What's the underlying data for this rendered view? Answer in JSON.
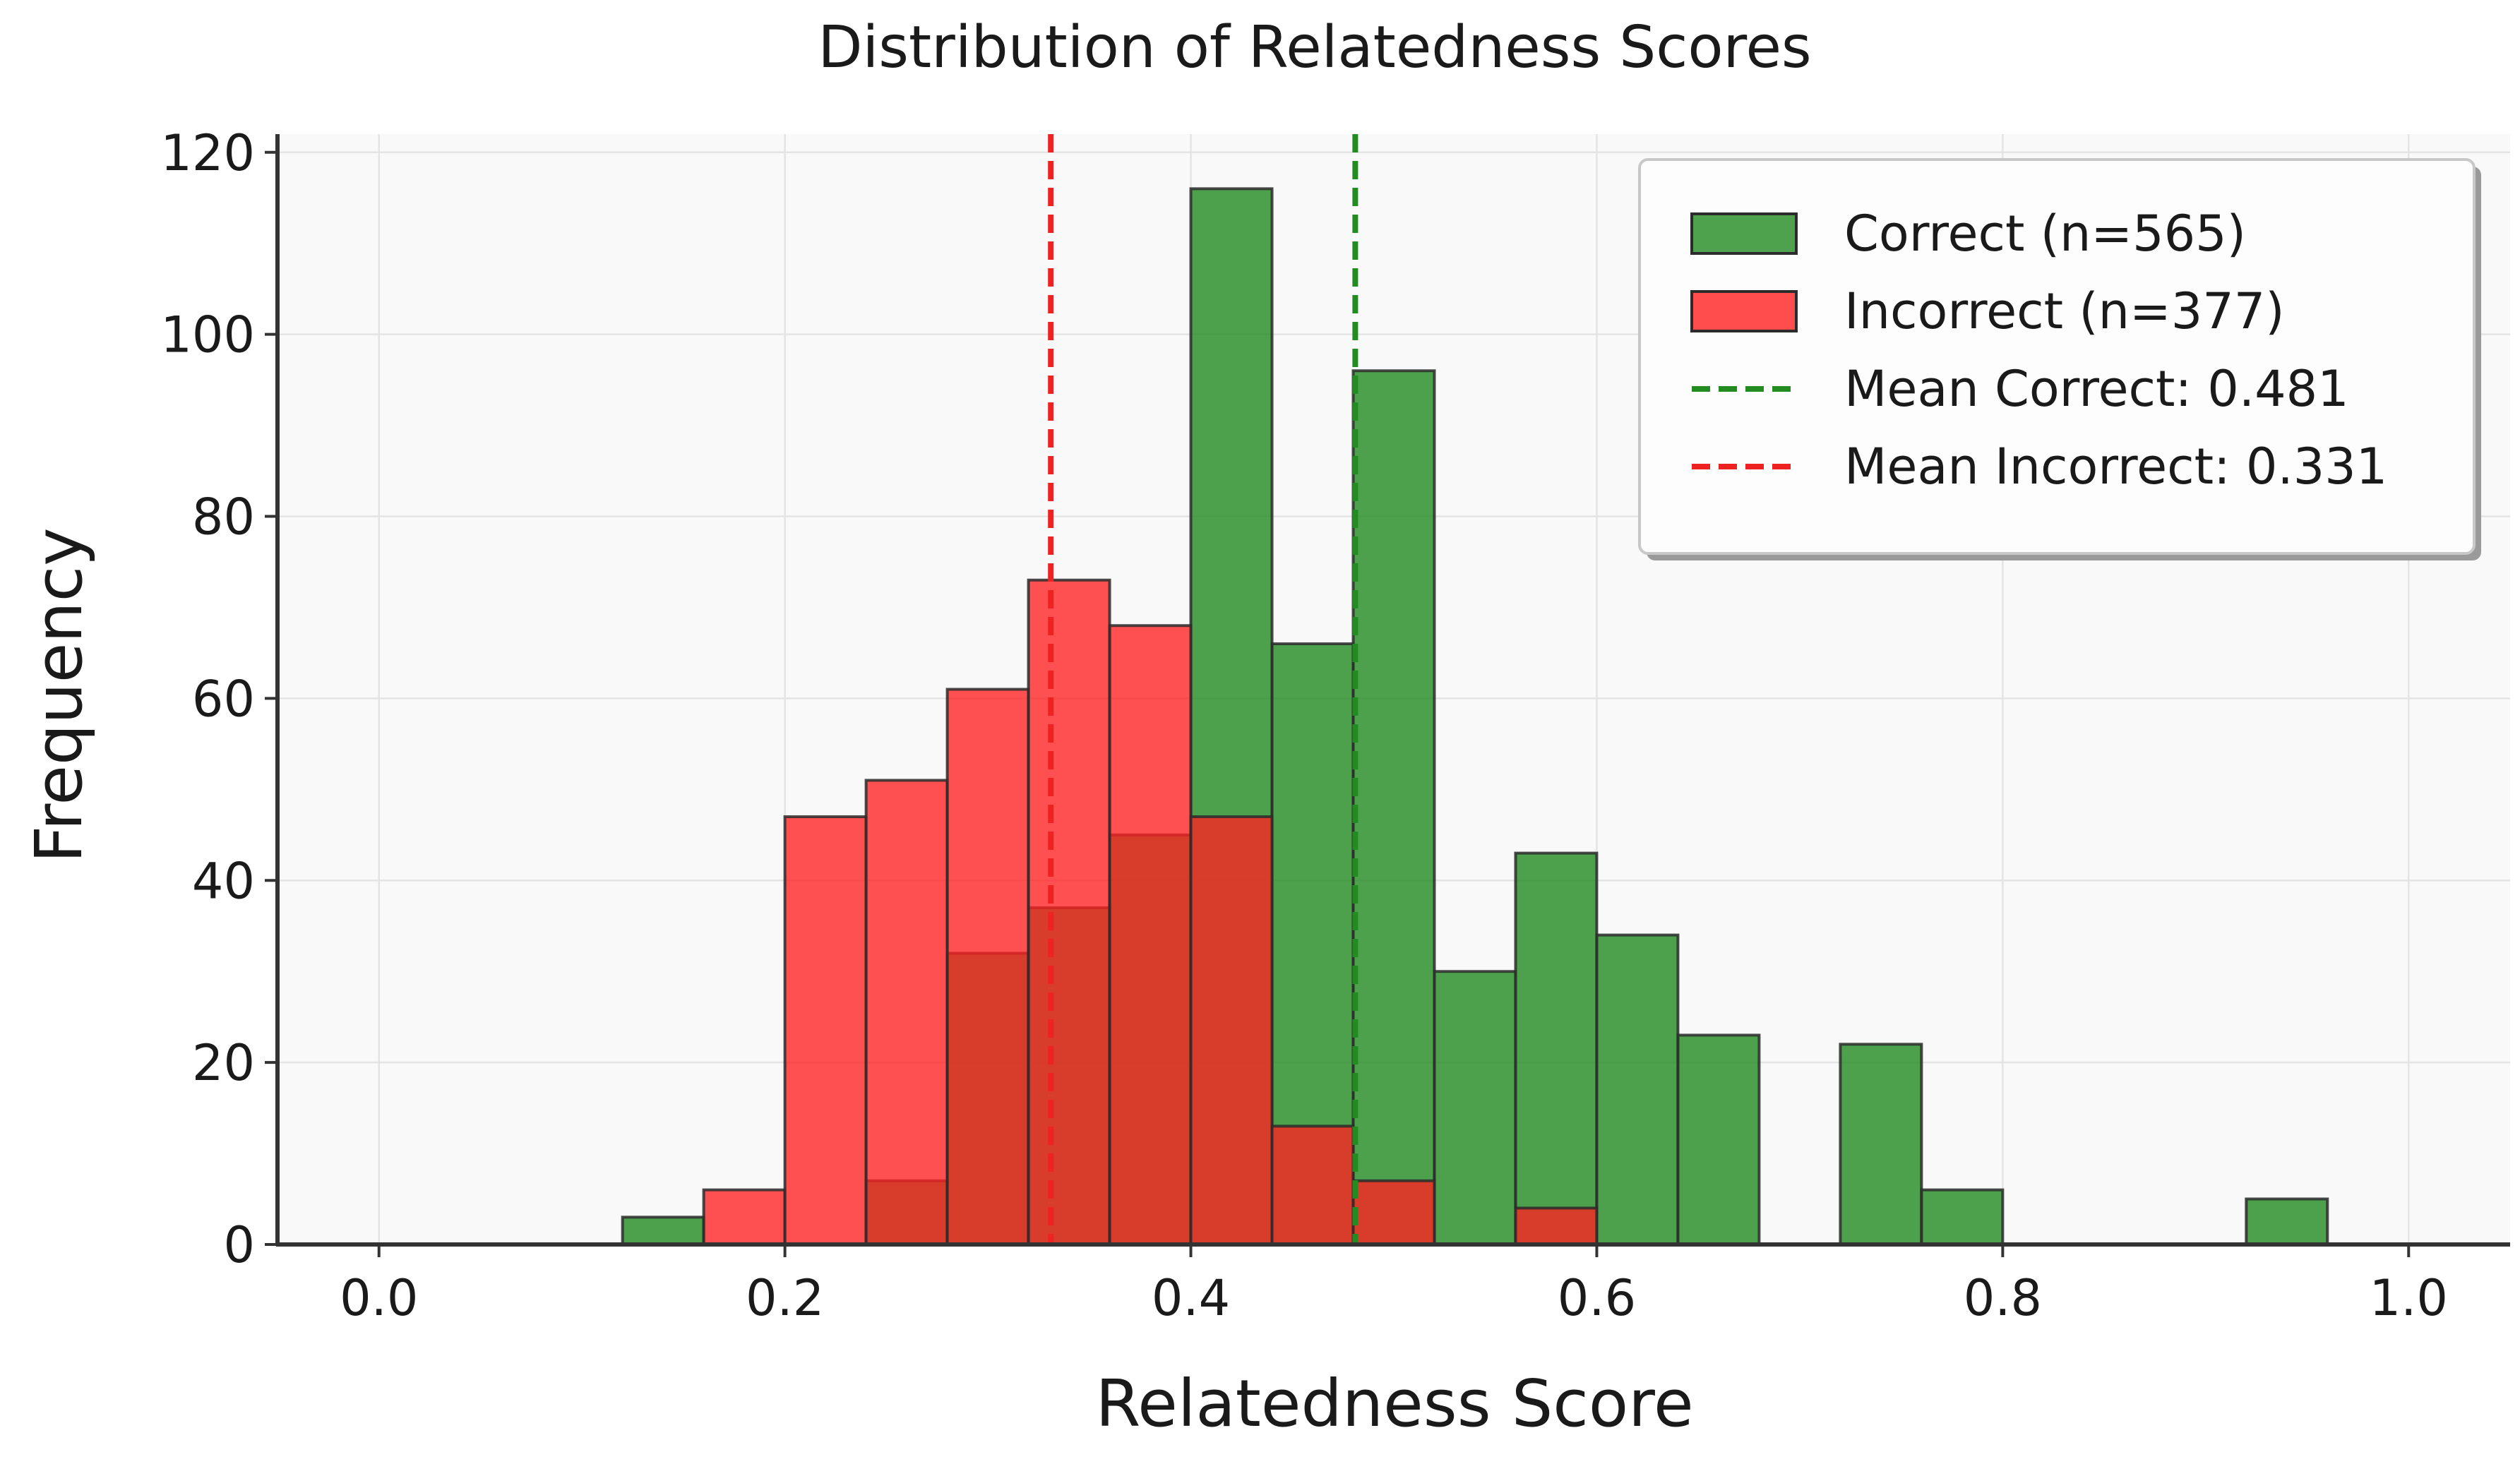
{
  "chart_data": {
    "type": "histogram",
    "title": "Distribution of Relatedness Scores",
    "xlabel": "Relatedness Score",
    "ylabel": "Frequency",
    "xlim": [
      -0.05,
      1.05
    ],
    "ylim": [
      0,
      122
    ],
    "xticks": [
      0.0,
      0.2,
      0.4,
      0.6,
      0.8,
      1.0
    ],
    "xtick_labels": [
      "0.0",
      "0.2",
      "0.4",
      "0.6",
      "0.8",
      "1.0"
    ],
    "yticks": [
      0,
      20,
      40,
      60,
      80,
      100,
      120
    ],
    "ytick_labels": [
      "0",
      "20",
      "40",
      "60",
      "80",
      "100",
      "120"
    ],
    "grid": true,
    "bin_width": 0.04,
    "series": [
      {
        "name": "Correct (n=565)",
        "color": "#228B22",
        "bins": [
          {
            "x0": 0.12,
            "count": 3
          },
          {
            "x0": 0.24,
            "count": 7
          },
          {
            "x0": 0.28,
            "count": 32
          },
          {
            "x0": 0.32,
            "count": 37
          },
          {
            "x0": 0.36,
            "count": 45
          },
          {
            "x0": 0.4,
            "count": 116
          },
          {
            "x0": 0.44,
            "count": 66
          },
          {
            "x0": 0.48,
            "count": 96
          },
          {
            "x0": 0.52,
            "count": 30
          },
          {
            "x0": 0.56,
            "count": 43
          },
          {
            "x0": 0.6,
            "count": 34
          },
          {
            "x0": 0.64,
            "count": 23
          },
          {
            "x0": 0.72,
            "count": 22
          },
          {
            "x0": 0.76,
            "count": 6
          },
          {
            "x0": 0.92,
            "count": 5
          }
        ]
      },
      {
        "name": "Incorrect (n=377)",
        "color": "#FF2020",
        "bins": [
          {
            "x0": 0.16,
            "count": 6
          },
          {
            "x0": 0.2,
            "count": 47
          },
          {
            "x0": 0.24,
            "count": 51
          },
          {
            "x0": 0.28,
            "count": 61
          },
          {
            "x0": 0.32,
            "count": 73
          },
          {
            "x0": 0.36,
            "count": 68
          },
          {
            "x0": 0.4,
            "count": 47
          },
          {
            "x0": 0.44,
            "count": 13
          },
          {
            "x0": 0.48,
            "count": 7
          },
          {
            "x0": 0.56,
            "count": 4
          }
        ]
      }
    ],
    "mean_lines": [
      {
        "name": "Mean Correct: 0.481",
        "x": 0.481,
        "color": "#228B22"
      },
      {
        "name": "Mean Incorrect: 0.331",
        "x": 0.331,
        "color": "#EE2222"
      }
    ],
    "legend": {
      "placement": "top-right",
      "entries": [
        {
          "label": "Correct (n=565)",
          "kind": "patch",
          "color": "#228B22"
        },
        {
          "label": "Incorrect (n=377)",
          "kind": "patch",
          "color": "#FF2020"
        },
        {
          "label": "Mean Correct: 0.481",
          "kind": "dashed-line",
          "color": "#228B22"
        },
        {
          "label": "Mean Incorrect: 0.331",
          "kind": "dashed-line",
          "color": "#EE2222"
        }
      ]
    }
  }
}
